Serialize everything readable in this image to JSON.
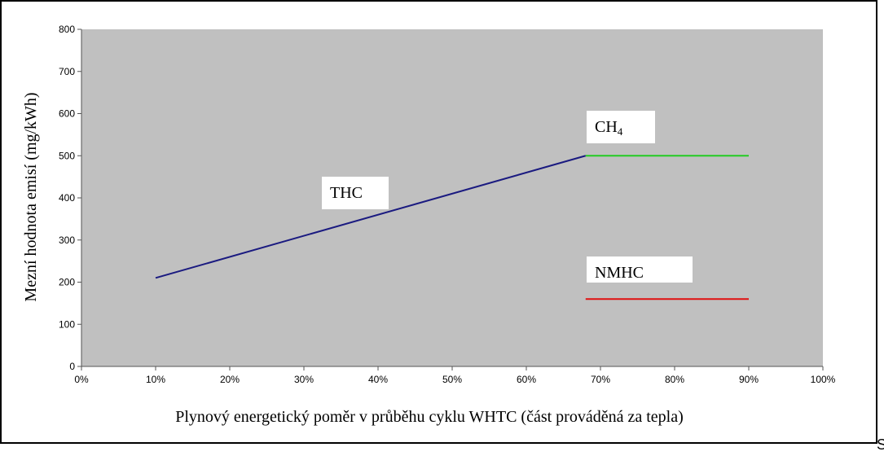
{
  "chart_data": {
    "type": "line",
    "xlabel": "Plynový energetický poměr v průběhu cyklu WHTC (část prováděná za tepla)",
    "ylabel": "Mezní hodnota emisí (mg/kWh)",
    "xlim": [
      0,
      100
    ],
    "ylim": [
      0,
      800
    ],
    "x_ticks": [
      0,
      10,
      20,
      30,
      40,
      50,
      60,
      70,
      80,
      90,
      100
    ],
    "x_tick_labels": [
      "0%",
      "10%",
      "20%",
      "30%",
      "40%",
      "50%",
      "60%",
      "70%",
      "80%",
      "90%",
      "100%"
    ],
    "y_ticks": [
      0,
      100,
      200,
      300,
      400,
      500,
      600,
      700,
      800
    ],
    "y_tick_labels": [
      "0",
      "100",
      "200",
      "300",
      "400",
      "500",
      "600",
      "700",
      "800"
    ],
    "grid": false,
    "plot_background": "#c0c0c0",
    "series": [
      {
        "name": "THC",
        "color": "#1a1a80",
        "x": [
          10,
          68
        ],
        "y": [
          210,
          500
        ]
      },
      {
        "name": "CH",
        "subscript": "4",
        "color": "#22cc22",
        "x": [
          68,
          90
        ],
        "y": [
          500,
          500
        ]
      },
      {
        "name": "NMHC",
        "color": "#e01010",
        "x": [
          68,
          90
        ],
        "y": [
          160,
          160
        ]
      }
    ]
  },
  "corner_letter": "S"
}
